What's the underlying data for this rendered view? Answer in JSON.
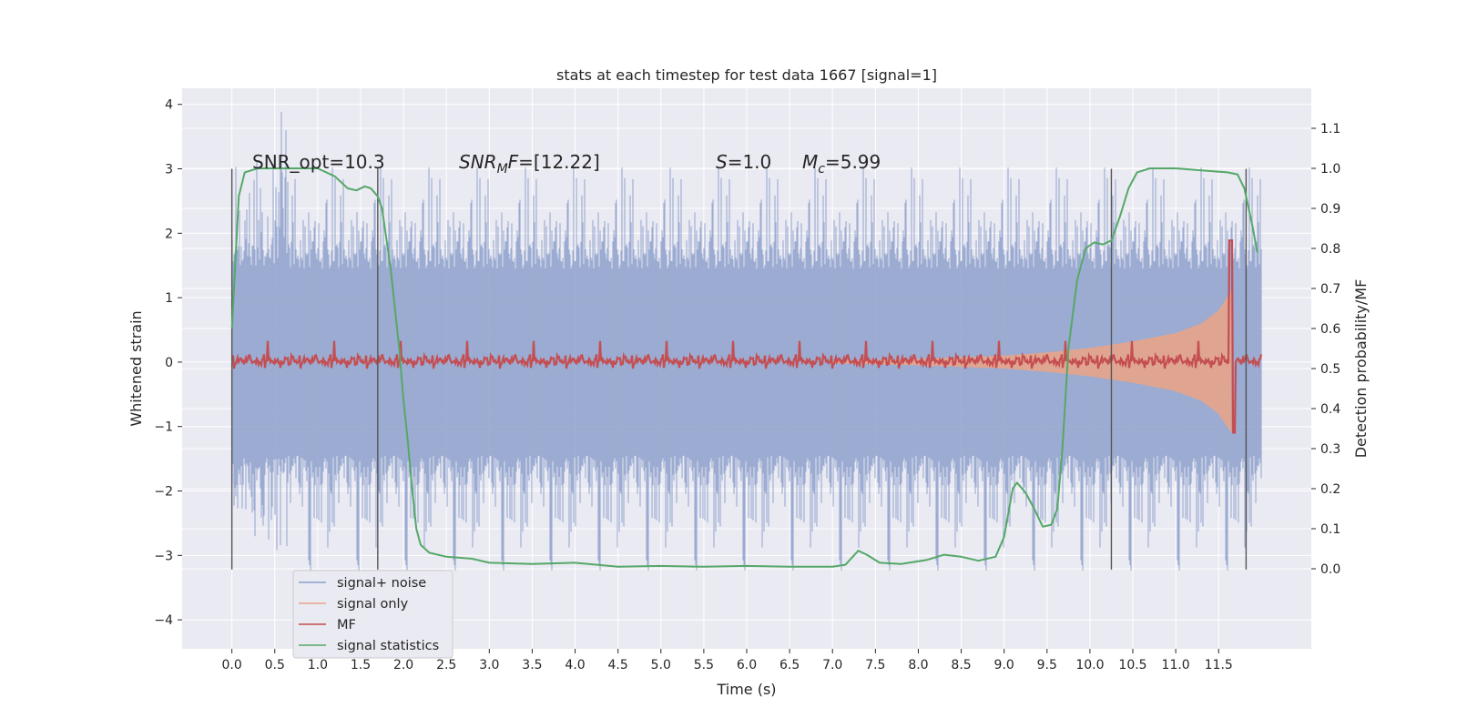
{
  "chart_data": {
    "type": "line",
    "title": "stats at each timestep for test data 1667 [signal=1]",
    "xlabel": "Time (s)",
    "ylabel_left": "Whitened strain",
    "ylabel_right": "Detection probability/MF",
    "xlim": [
      -0.58,
      12.58
    ],
    "ylim_left": [
      -4.45,
      4.25
    ],
    "ylim_right": [
      -0.2,
      1.2
    ],
    "x_ticks": [
      "0.0",
      "0.5",
      "1.0",
      "1.5",
      "2.0",
      "2.5",
      "3.0",
      "3.5",
      "4.0",
      "4.5",
      "5.0",
      "5.5",
      "6.0",
      "6.5",
      "7.0",
      "7.5",
      "8.0",
      "8.5",
      "9.0",
      "9.5",
      "10.0",
      "10.5",
      "11.0",
      "11.5"
    ],
    "y_ticks_left": [
      "4",
      "3",
      "2",
      "1",
      "0",
      "−1",
      "−2",
      "−3",
      "−4"
    ],
    "y_ticks_right": [
      "1.1",
      "1.0",
      "0.9",
      "0.8",
      "0.7",
      "0.6",
      "0.5",
      "0.4",
      "0.3",
      "0.2",
      "0.1",
      "0.0"
    ],
    "grid": true,
    "legend_placement": "lower-left",
    "annotations": [
      {
        "text": "SNR_opt=10.3",
        "x": 0.2
      },
      {
        "text": "SNR_MF=[12.22]",
        "x": 2.6
      },
      {
        "text": "S=1.0",
        "x": 5.6
      },
      {
        "text": "M_c=5.99",
        "x": 6.6
      }
    ],
    "vertical_lines": [
      0.0,
      1.7,
      10.25,
      11.82
    ],
    "series": [
      {
        "name": "signal+ noise",
        "axis": "left",
        "color": "#8da0cb",
        "description": "whitened strain noise, band about ±2 with spikes up to about ±4"
      },
      {
        "name": "signal only",
        "axis": "left",
        "color": "#e8a48a",
        "envelope": [
          [
            7.0,
            0.02
          ],
          [
            8.0,
            0.05
          ],
          [
            9.0,
            0.1
          ],
          [
            9.5,
            0.15
          ],
          [
            10.0,
            0.22
          ],
          [
            10.5,
            0.32
          ],
          [
            11.0,
            0.45
          ],
          [
            11.3,
            0.6
          ],
          [
            11.5,
            0.8
          ],
          [
            11.65,
            1.1
          ]
        ]
      },
      {
        "name": "MF",
        "axis": "right",
        "color": "#c44e52",
        "baseline": 0.52
      },
      {
        "name": "signal statistics",
        "axis": "right",
        "color": "#55a868",
        "points": [
          [
            0.0,
            0.6
          ],
          [
            0.08,
            0.93
          ],
          [
            0.15,
            0.99
          ],
          [
            0.3,
            1.0
          ],
          [
            0.6,
            1.0
          ],
          [
            1.0,
            1.0
          ],
          [
            1.2,
            0.98
          ],
          [
            1.35,
            0.95
          ],
          [
            1.45,
            0.945
          ],
          [
            1.55,
            0.955
          ],
          [
            1.62,
            0.95
          ],
          [
            1.7,
            0.93
          ],
          [
            1.75,
            0.9
          ],
          [
            1.85,
            0.75
          ],
          [
            1.95,
            0.55
          ],
          [
            2.0,
            0.42
          ],
          [
            2.05,
            0.32
          ],
          [
            2.1,
            0.2
          ],
          [
            2.15,
            0.1
          ],
          [
            2.2,
            0.06
          ],
          [
            2.3,
            0.04
          ],
          [
            2.5,
            0.03
          ],
          [
            2.8,
            0.025
          ],
          [
            3.0,
            0.015
          ],
          [
            3.5,
            0.012
          ],
          [
            4.0,
            0.015
          ],
          [
            4.5,
            0.005
          ],
          [
            5.0,
            0.007
          ],
          [
            5.5,
            0.005
          ],
          [
            6.0,
            0.007
          ],
          [
            6.5,
            0.005
          ],
          [
            7.0,
            0.005
          ],
          [
            7.15,
            0.01
          ],
          [
            7.3,
            0.045
          ],
          [
            7.4,
            0.035
          ],
          [
            7.55,
            0.015
          ],
          [
            7.8,
            0.012
          ],
          [
            8.1,
            0.022
          ],
          [
            8.3,
            0.035
          ],
          [
            8.5,
            0.03
          ],
          [
            8.7,
            0.02
          ],
          [
            8.9,
            0.03
          ],
          [
            9.0,
            0.08
          ],
          [
            9.1,
            0.2
          ],
          [
            9.15,
            0.215
          ],
          [
            9.25,
            0.19
          ],
          [
            9.35,
            0.15
          ],
          [
            9.45,
            0.105
          ],
          [
            9.55,
            0.11
          ],
          [
            9.62,
            0.15
          ],
          [
            9.68,
            0.3
          ],
          [
            9.75,
            0.55
          ],
          [
            9.85,
            0.72
          ],
          [
            9.95,
            0.8
          ],
          [
            10.05,
            0.815
          ],
          [
            10.15,
            0.81
          ],
          [
            10.25,
            0.82
          ],
          [
            10.35,
            0.88
          ],
          [
            10.45,
            0.95
          ],
          [
            10.55,
            0.99
          ],
          [
            10.7,
            1.0
          ],
          [
            11.0,
            1.0
          ],
          [
            11.3,
            0.995
          ],
          [
            11.6,
            0.99
          ],
          [
            11.72,
            0.985
          ],
          [
            11.8,
            0.95
          ],
          [
            11.9,
            0.85
          ],
          [
            11.95,
            0.79
          ]
        ]
      }
    ]
  }
}
